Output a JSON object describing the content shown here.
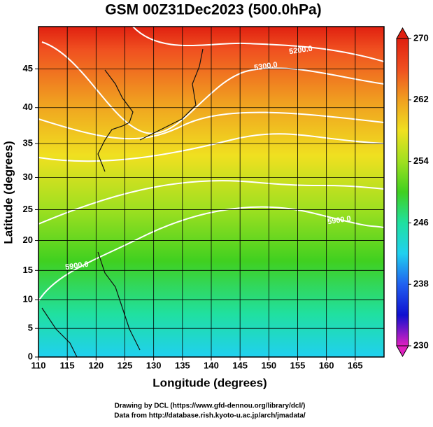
{
  "chart_data": {
    "type": "contour",
    "title": "GSM 00Z31Dec2023 (500.0hPa)",
    "x_label": "Longitude (degrees)",
    "y_label": "Latitude  (degrees)",
    "xlim": [
      110,
      170
    ],
    "ylim": [
      0,
      50
    ],
    "xticks": [
      110,
      115,
      120,
      125,
      130,
      135,
      140,
      145,
      150,
      155,
      160,
      165
    ],
    "yticks": [
      0,
      5,
      10,
      15,
      20,
      25,
      30,
      35,
      40,
      45
    ],
    "projection": "mercator",
    "grid": true,
    "colorbar": {
      "lim": [
        230,
        270
      ],
      "ticks": [
        230,
        238,
        246,
        254,
        262,
        270
      ]
    },
    "colormap": [
      "#e020c0",
      "#1010d0",
      "#2060f0",
      "#20d0f0",
      "#20e0a0",
      "#40d020",
      "#a0e020",
      "#f0e020",
      "#f0a020",
      "#f05020",
      "#e02010"
    ],
    "contour_labels": [
      "5200.0",
      "5300.0",
      "5900.0",
      "5900.0"
    ],
    "footer": [
      "Drawing by DCL (https://www.gfd-dennou.org/library/dcl/)",
      "Data from http://database.rish.kyoto-u.ac.jp/arch/jmadata/"
    ]
  }
}
